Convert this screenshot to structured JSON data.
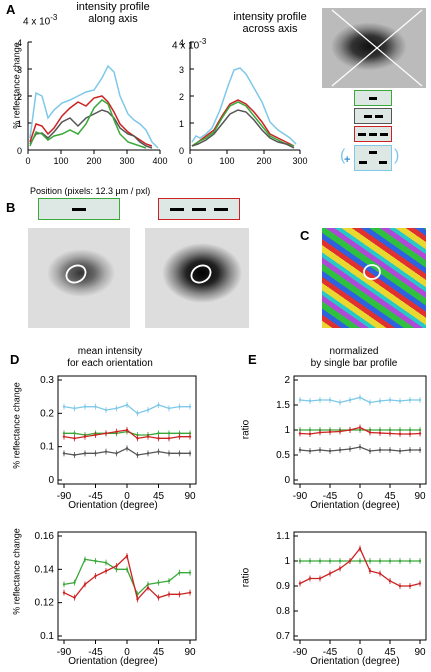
{
  "panels": {
    "A": {
      "letter": "A",
      "left_title": [
        "intensity profile",
        "along axis"
      ],
      "right_title": [
        "intensity profile",
        "across axis"
      ],
      "exponent_left": "4  x 10",
      "exponent_right": "4  x 10",
      "exp_sup": "-3",
      "y_label": "% reflectance change",
      "x_label": "Position (pixels: 12.3 μm / pxl)",
      "y_ticks": [
        "4",
        "3",
        "2",
        "1",
        "0"
      ],
      "x_ticks_left": [
        "0",
        "100",
        "200",
        "300",
        "400"
      ],
      "x_ticks_right": [
        "0",
        "100",
        "200",
        "300"
      ]
    },
    "B": {
      "letter": "B"
    },
    "C": {
      "letter": "C"
    },
    "D": {
      "letter": "D",
      "title": [
        "mean intensity",
        "for each orientation"
      ],
      "y_label": "% reflectance change",
      "x_label": "Orientation (degree)",
      "top_y_ticks": [
        "0.3",
        "0.2",
        "0.1",
        "0"
      ],
      "bottom_y_ticks": [
        "0.16",
        "0.14",
        "0.12",
        "0.1"
      ],
      "x_ticks": [
        "-90",
        "-45",
        "0",
        "45",
        "90"
      ]
    },
    "E": {
      "letter": "E",
      "title": [
        "normalized",
        "by single bar profile"
      ],
      "y_label": "ratio",
      "x_label": "Orientation (degree)",
      "top_y_ticks": [
        "2",
        "1.5",
        "1",
        "0.5",
        "0"
      ],
      "bottom_y_ticks": [
        "1.1",
        "1",
        "0.9",
        "0.8",
        "0.7"
      ],
      "x_ticks": [
        "-90",
        "-45",
        "0",
        "45",
        "90"
      ]
    }
  },
  "colors": {
    "single_bar": "#3aa83a",
    "two_bars": "#555555",
    "three_bars": "#cc2222",
    "sum": "#7ec8e8"
  },
  "legend_plus": "+",
  "chart_data": [
    {
      "type": "line",
      "x": [
        -90,
        -75,
        -60,
        -45,
        -30,
        -15,
        0,
        15,
        30,
        45,
        60,
        75,
        90
      ],
      "series": [
        {
          "values": [
            0.22,
            0.215,
            0.22,
            0.22,
            0.21,
            0.215,
            0.225,
            0.2,
            0.21,
            0.225,
            0.215,
            0.22,
            0.22
          ]
        },
        {
          "values": [
            0.14,
            0.14,
            0.135,
            0.14,
            0.14,
            0.14,
            0.145,
            0.135,
            0.135,
            0.14,
            0.14,
            0.14,
            0.14
          ]
        },
        {
          "values": [
            0.13,
            0.125,
            0.13,
            0.135,
            0.14,
            0.145,
            0.15,
            0.125,
            0.13,
            0.125,
            0.125,
            0.13,
            0.13
          ]
        },
        {
          "values": [
            0.08,
            0.075,
            0.08,
            0.08,
            0.085,
            0.08,
            0.095,
            0.075,
            0.08,
            0.085,
            0.08,
            0.08,
            0.08
          ]
        }
      ],
      "ylim": [
        0,
        0.3
      ]
    },
    {
      "type": "line",
      "x": [
        -90,
        -75,
        -60,
        -45,
        -30,
        -15,
        0,
        15,
        30,
        45,
        60,
        75,
        90
      ],
      "series": [
        {
          "values": [
            0.131,
            0.132,
            0.146,
            0.145,
            0.144,
            0.14,
            0.14,
            0.125,
            0.131,
            0.132,
            0.133,
            0.138,
            0.138
          ]
        },
        {
          "values": [
            0.126,
            0.123,
            0.131,
            0.136,
            0.139,
            0.142,
            0.148,
            0.122,
            0.129,
            0.123,
            0.125,
            0.125,
            0.126
          ]
        }
      ],
      "ylim": [
        0.1,
        0.16
      ]
    },
    {
      "type": "line",
      "x": [
        -90,
        -75,
        -60,
        -45,
        -30,
        -15,
        0,
        15,
        30,
        45,
        60,
        75,
        90
      ],
      "series": [
        {
          "values": [
            1.6,
            1.58,
            1.6,
            1.6,
            1.55,
            1.6,
            1.65,
            1.55,
            1.58,
            1.6,
            1.58,
            1.6,
            1.6
          ]
        },
        {
          "values": [
            1.0,
            1.0,
            1.0,
            1.0,
            1.0,
            1.0,
            1.0,
            1.0,
            1.0,
            1.0,
            1.0,
            1.0,
            1.0
          ]
        },
        {
          "values": [
            0.93,
            0.92,
            0.95,
            0.96,
            0.97,
            1.0,
            1.05,
            0.95,
            0.94,
            0.93,
            0.92,
            0.92,
            0.93
          ]
        },
        {
          "values": [
            0.6,
            0.58,
            0.6,
            0.58,
            0.6,
            0.62,
            0.66,
            0.58,
            0.6,
            0.6,
            0.58,
            0.6,
            0.6
          ]
        }
      ],
      "ylim": [
        0,
        2
      ]
    },
    {
      "type": "line",
      "x": [
        -90,
        -75,
        -60,
        -45,
        -30,
        -15,
        0,
        15,
        30,
        45,
        60,
        75,
        90
      ],
      "series": [
        {
          "values": [
            1.0,
            1.0,
            1.0,
            1.0,
            1.0,
            1.0,
            1.0,
            1.0,
            1.0,
            1.0,
            1.0,
            1.0,
            1.0
          ]
        },
        {
          "values": [
            0.91,
            0.93,
            0.93,
            0.95,
            0.97,
            1.0,
            1.05,
            0.96,
            0.95,
            0.92,
            0.9,
            0.9,
            0.91
          ]
        }
      ],
      "ylim": [
        0.7,
        1.1
      ]
    }
  ]
}
